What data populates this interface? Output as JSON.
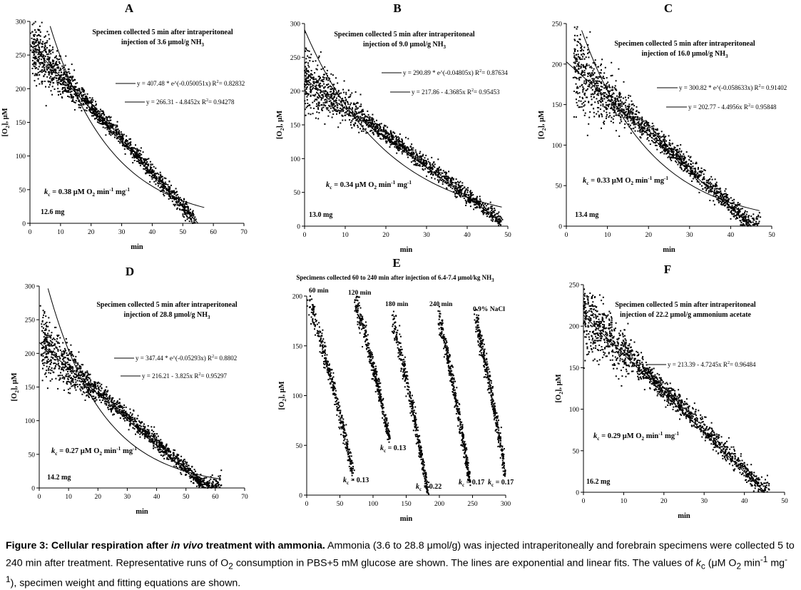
{
  "panels": [
    {
      "id": "A",
      "letter": "A",
      "note_lines": [
        "Specimen collected 5 min after intraperitoneal",
        "injection of 3.6 μmol/g NH3"
      ],
      "eq_exp": "y = 407.48 * e^(-0.050051x)   R2= 0.82832",
      "eq_lin": "y = 266.31 - 4.8452x   R2= 0.94278",
      "kc": "kc = 0.38 μM O2 min-1 mg-1",
      "weight": "12.6 mg"
    },
    {
      "id": "B",
      "letter": "B",
      "note_lines": [
        "Specimen collected 5 min after intraperitoneal",
        "injection of 9.0 μmol/g NH3"
      ],
      "eq_exp": "y = 290.89 * e^(-0.04805x)   R2= 0.87634",
      "eq_lin": "y = 217.86 - 4.3685x   R2= 0.95453",
      "kc": "kc = 0.34 μM O2 min-1 mg-1",
      "weight": "13.0 mg"
    },
    {
      "id": "C",
      "letter": "C",
      "note_lines": [
        "Specimen collected 5 min after intraperitoneal",
        "injection of 16.0 μmol/g NH3"
      ],
      "eq_exp": "y = 300.82 * e^(-0.058633x)   R2= 0.91402",
      "eq_lin": "y = 202.77 - 4.4956x   R2= 0.95848",
      "kc": "kc = 0.33 μM O2 min-1 mg-1",
      "weight": "13.4 mg"
    },
    {
      "id": "D",
      "letter": "D",
      "note_lines": [
        "Specimen collected 5 min after intraperitoneal",
        "injection of 28.8 μmol/g NH3"
      ],
      "eq_exp": "y = 347.44 * e^(-0.05293x)   R2= 0.8802",
      "eq_lin": "y = 216.21 - 3.825x   R2= 0.95297",
      "kc": "kc = 0.27 μM O2 min-1 mg-1",
      "weight": "14.2 mg"
    },
    {
      "id": "E",
      "letter": "E",
      "note_lines": [
        "Specimens collected 60 to 240 min after injection of 6.4-7.4 μmol/kg NH3"
      ],
      "run_labels": [
        "60 min",
        "120 min",
        "180 min",
        "240 min",
        "0.9% NaCl"
      ],
      "run_kc": [
        "kc = 0.13",
        "kc = 0.13",
        "kc = 0.22",
        "kc = 0.17",
        "kc = 0.17"
      ]
    },
    {
      "id": "F",
      "letter": "F",
      "note_lines": [
        "Specimen collected 5 min after intraperitoneal",
        "injection of 22.2 μmol/g ammonium acetate"
      ],
      "eq_lin": "y = 213.39 - 4.7245x   R2= 0.96484",
      "kc": "kc = 0.29 μM O2 min-1 mg-1",
      "weight": "16.2 mg"
    }
  ],
  "chart_data": [
    {
      "panel": "A",
      "type": "scatter",
      "xlabel": "min",
      "ylabel": "[O2], μM",
      "xlim": [
        0,
        70
      ],
      "ylim": [
        0,
        300
      ],
      "xticks": [
        0,
        10,
        20,
        30,
        40,
        50,
        60,
        70
      ],
      "yticks": [
        0,
        50,
        100,
        150,
        200,
        250,
        300
      ],
      "scatter_range": [
        1,
        54
      ],
      "fits": {
        "exponential": {
          "a": 407.48,
          "b": -0.050051,
          "r2": 0.82832,
          "x_range": [
            1,
            57
          ]
        },
        "linear": {
          "intercept": 266.31,
          "slope": -4.8452,
          "r2": 0.94278,
          "x_range": [
            0,
            55
          ]
        }
      },
      "kc": 0.38,
      "weight_mg": 12.6
    },
    {
      "panel": "B",
      "type": "scatter",
      "xlabel": "min",
      "ylabel": "[O2], μM",
      "xlim": [
        0,
        50
      ],
      "ylim": [
        0,
        300
      ],
      "xticks": [
        0,
        10,
        20,
        30,
        40,
        50
      ],
      "yticks": [
        0,
        50,
        100,
        150,
        200,
        250,
        300
      ],
      "scatter_range": [
        0,
        48.5
      ],
      "fits": {
        "exponential": {
          "a": 290.89,
          "b": -0.04805,
          "r2": 0.87634,
          "x_range": [
            0,
            48.5
          ]
        },
        "linear": {
          "intercept": 217.86,
          "slope": -4.3685,
          "r2": 0.95453,
          "x_range": [
            0,
            48.5
          ]
        }
      },
      "kc": 0.34,
      "weight_mg": 13.0
    },
    {
      "panel": "C",
      "type": "scatter",
      "xlabel": "min",
      "ylabel": "[O2], μM",
      "xlim": [
        0,
        50
      ],
      "ylim": [
        0,
        250
      ],
      "xticks": [
        0,
        10,
        20,
        30,
        40,
        50
      ],
      "yticks": [
        0,
        50,
        100,
        150,
        200,
        250
      ],
      "scatter_range": [
        2,
        47
      ],
      "fits": {
        "exponential": {
          "a": 300.82,
          "b": -0.058633,
          "r2": 0.91402,
          "x_range": [
            3,
            47
          ]
        },
        "linear": {
          "intercept": 202.77,
          "slope": -4.4956,
          "r2": 0.95848,
          "x_range": [
            0,
            45
          ]
        }
      },
      "kc": 0.33,
      "weight_mg": 13.4
    },
    {
      "panel": "D",
      "type": "scatter",
      "xlabel": "min",
      "ylabel": "[O2], μM",
      "xlim": [
        0,
        70
      ],
      "ylim": [
        0,
        300
      ],
      "xticks": [
        0,
        10,
        20,
        30,
        40,
        50,
        60,
        70
      ],
      "yticks": [
        0,
        50,
        100,
        150,
        200,
        250,
        300
      ],
      "scatter_range": [
        1,
        62
      ],
      "fits": {
        "exponential": {
          "a": 347.44,
          "b": -0.05293,
          "r2": 0.8802,
          "x_range": [
            2,
            62
          ]
        },
        "linear": {
          "intercept": 216.21,
          "slope": -3.825,
          "r2": 0.95297,
          "x_range": [
            0,
            56.5
          ]
        }
      },
      "kc": 0.27,
      "weight_mg": 14.2
    },
    {
      "panel": "E",
      "type": "scatter",
      "xlabel": "min",
      "ylabel": "[O2], μM",
      "xlim": [
        0,
        300
      ],
      "ylim": [
        0,
        200
      ],
      "xticks": [
        0,
        50,
        100,
        150,
        200,
        250,
        300
      ],
      "yticks": [
        0,
        50,
        100,
        150,
        200
      ],
      "runs": [
        {
          "label": "60 min",
          "x_start": 3,
          "x_end": 70,
          "y_start": 198,
          "y_end": 22,
          "kc": 0.13
        },
        {
          "label": "120 min",
          "x_start": 73,
          "x_end": 125,
          "y_start": 196,
          "y_end": 55,
          "kc": 0.13
        },
        {
          "label": "180 min",
          "x_start": 130,
          "x_end": 183,
          "y_start": 176,
          "y_end": 0,
          "kc": 0.22
        },
        {
          "label": "240 min",
          "x_start": 199,
          "x_end": 246,
          "y_start": 182,
          "y_end": 12,
          "kc": 0.17
        },
        {
          "label": "0.9% NaCl",
          "x_start": 254,
          "x_end": 300,
          "y_start": 180,
          "y_end": 20,
          "kc": 0.17
        }
      ]
    },
    {
      "panel": "F",
      "type": "scatter",
      "xlabel": "min",
      "ylabel": "[O2], μM",
      "xlim": [
        0,
        50
      ],
      "ylim": [
        0,
        250
      ],
      "xticks": [
        0,
        10,
        20,
        30,
        40,
        50
      ],
      "yticks": [
        0,
        50,
        100,
        150,
        200,
        250
      ],
      "scatter_range": [
        0,
        46
      ],
      "fits": {
        "linear": {
          "intercept": 213.39,
          "slope": -4.7245,
          "r2": 0.96484,
          "x_range": [
            0,
            45
          ]
        }
      },
      "kc": 0.29,
      "weight_mg": 16.2
    }
  ],
  "caption": {
    "title_bold_1": "Figure 3: Cellular respiration after ",
    "title_italic": "in vivo",
    "title_bold_2": " treatment with ammonia.",
    "text_1": " Ammonia (3.6 to 28.8 μmol/g) was injected intraperitoneally and forebrain specimens were collected 5 to 240 min after treatment. Representative runs of O",
    "sub_o2": "2",
    "text_2": " consumption in PBS+5 mM glucose are shown.  The lines are exponential and linear fits. The values of ",
    "k": "k",
    "sub_c": "c",
    "text_3": " (μM O",
    "sub_o2b": "2",
    "text_4": " min",
    "sup_m1": "-1",
    "text_5": " mg",
    "sup_m1b": "-1",
    "text_6": "), specimen weight and fitting equations are shown."
  }
}
